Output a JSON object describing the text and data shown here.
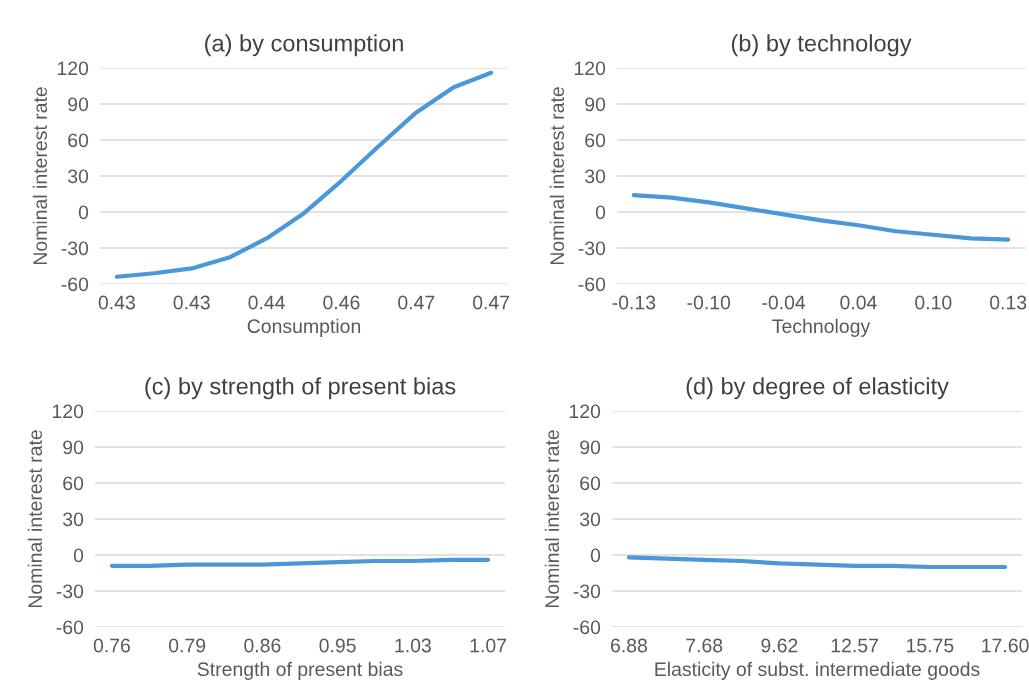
{
  "chart_data": [
    {
      "type": "line",
      "title": "(a) by consumption",
      "xlabel": "Consumption",
      "ylabel": "Nominal interest rate",
      "categories": [
        "0.43",
        null,
        "0.43",
        null,
        "0.44",
        null,
        "0.46",
        null,
        "0.47",
        null,
        "0.47"
      ],
      "color": "#4a98d8",
      "values": [
        -54,
        -51,
        -47,
        -38,
        -22,
        -1,
        26,
        55,
        83,
        104,
        116
      ],
      "ylim": [
        -60,
        120
      ],
      "yticks": [
        -60,
        -30,
        0,
        30,
        60,
        90,
        120
      ],
      "grid": "y"
    },
    {
      "type": "line",
      "title": "(b) by technology",
      "xlabel": "Technology",
      "ylabel": "Nominal interest rate",
      "categories": [
        "-0.13",
        null,
        "-0.10",
        null,
        "-0.04",
        null,
        "0.04",
        null,
        "0.10",
        null,
        "0.13"
      ],
      "color": "#4a98d8",
      "values": [
        14,
        12,
        8,
        3,
        -2,
        -7,
        -11,
        -16,
        -19,
        -22,
        -23
      ],
      "ylim": [
        -60,
        120
      ],
      "yticks": [
        -60,
        -30,
        0,
        30,
        60,
        90,
        120
      ],
      "grid": "y"
    },
    {
      "type": "line",
      "title": "(c) by strength of present bias",
      "xlabel": "Strength of present bias",
      "ylabel": "Nominal interest rate",
      "categories": [
        "0.76",
        null,
        "0.79",
        null,
        "0.86",
        null,
        "0.95",
        null,
        "1.03",
        null,
        "1.07"
      ],
      "color": "#4a98d8",
      "values": [
        -9,
        -9,
        -8,
        -8,
        -8,
        -7,
        -6,
        -5,
        -5,
        -4,
        -4
      ],
      "ylim": [
        -60,
        120
      ],
      "yticks": [
        -60,
        -30,
        0,
        30,
        60,
        90,
        120
      ],
      "grid": "y"
    },
    {
      "type": "line",
      "title": "(d) by degree of elasticity",
      "xlabel": "Elasticity of subst. intermediate goods",
      "ylabel": "Nominal interest rate",
      "categories": [
        "6.88",
        null,
        "7.68",
        null,
        "9.62",
        null,
        "12.57",
        null,
        "15.75",
        null,
        "17.60"
      ],
      "color": "#4a98d8",
      "values": [
        -2,
        -3,
        -4,
        -5,
        -7,
        -8,
        -9,
        -9,
        -10,
        -10,
        -10
      ],
      "ylim": [
        -60,
        120
      ],
      "yticks": [
        -60,
        -30,
        0,
        30,
        60,
        90,
        120
      ],
      "grid": "y"
    }
  ]
}
